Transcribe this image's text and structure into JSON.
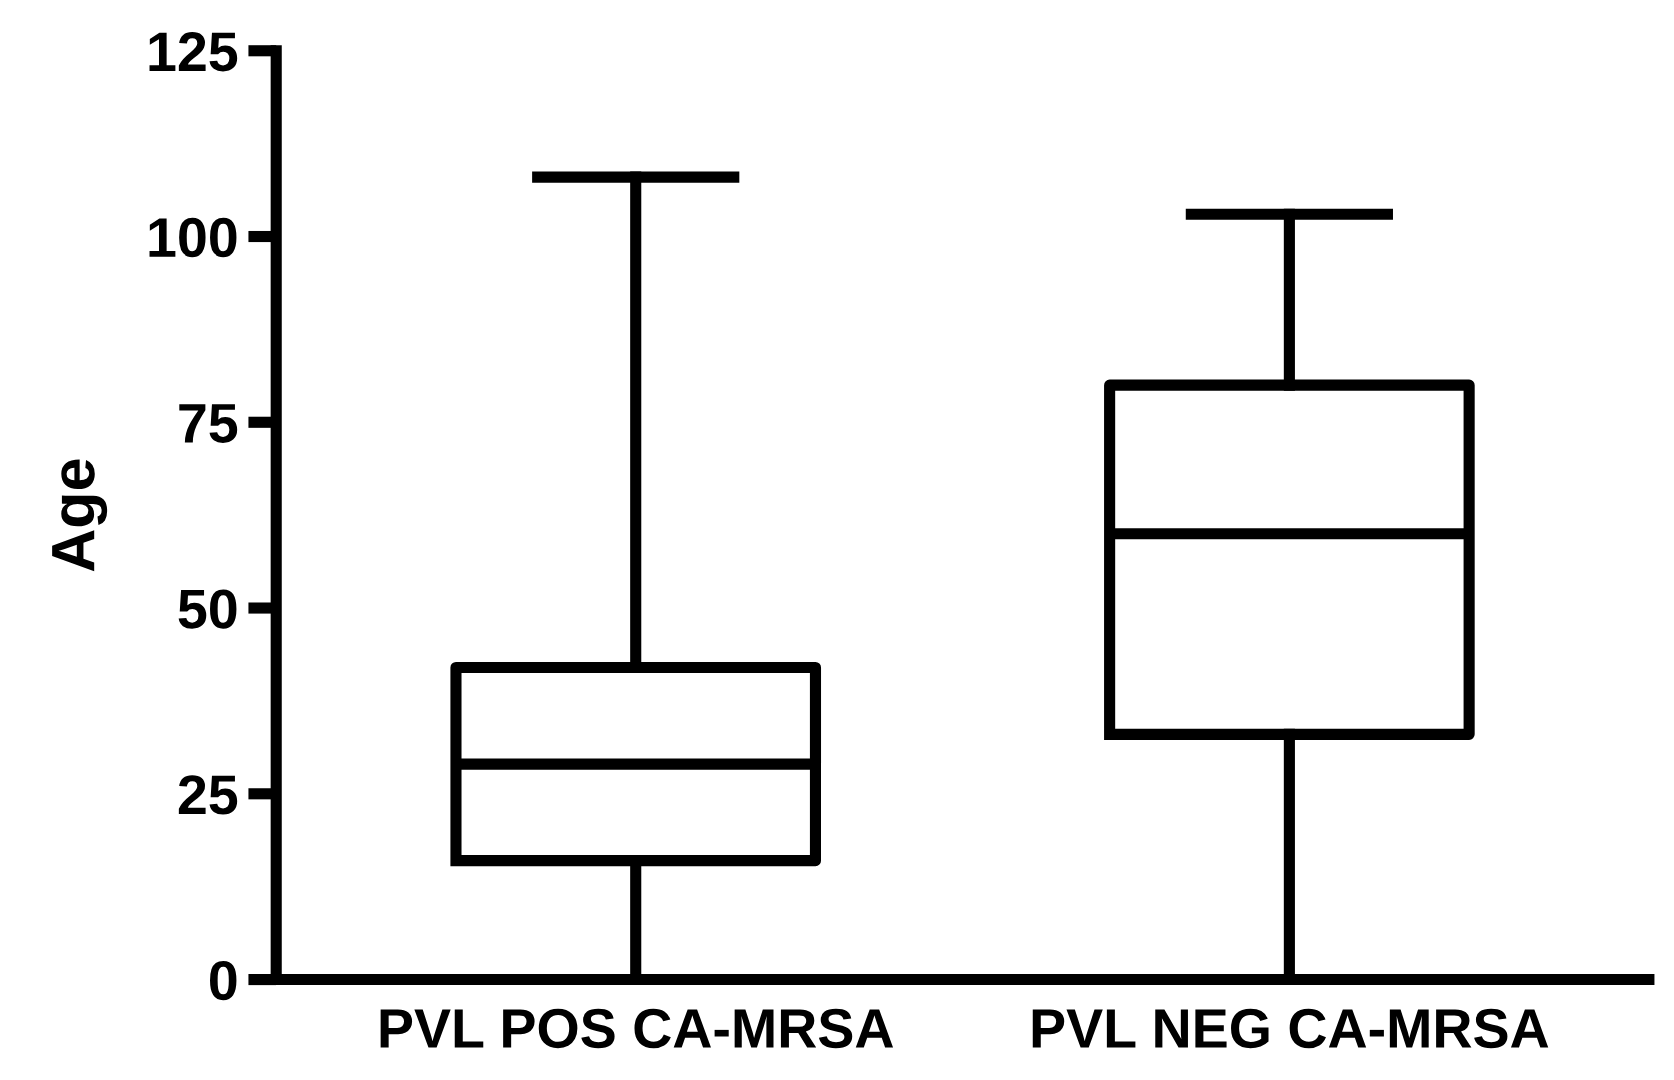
{
  "chart_data": {
    "type": "box",
    "ylabel": "Age",
    "categories": [
      "PVL POS CA-MRSA",
      "PVL NEG CA-MRSA"
    ],
    "boxes": [
      {
        "low": 0,
        "q1": 16,
        "median": 29,
        "q3": 42,
        "high": 108
      },
      {
        "low": 0,
        "q1": 33,
        "median": 60,
        "q3": 80,
        "high": 103
      }
    ],
    "color": "#000000",
    "ylim": [
      0,
      125
    ],
    "yticks": [
      0,
      25,
      50,
      75,
      100,
      125
    ],
    "grid": false,
    "legend": false
  }
}
